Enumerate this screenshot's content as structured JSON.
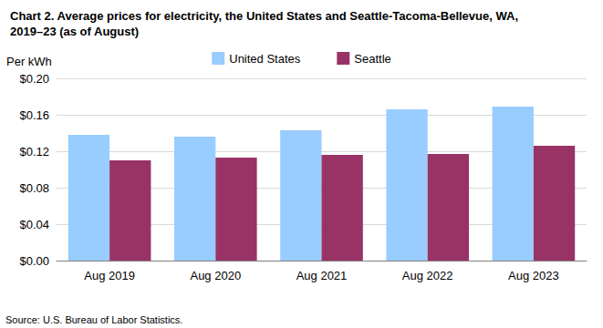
{
  "chart_data": {
    "type": "bar",
    "title": "Chart 2. Average prices for electricity, the United States and Seattle-Tacoma-Bellevue, WA, 2019–23 (as of August)",
    "y_label": "Per kWh",
    "source": "Source: U.S. Bureau of Labor Statistics.",
    "categories": [
      "Aug 2019",
      "Aug 2020",
      "Aug 2021",
      "Aug 2022",
      "Aug 2023"
    ],
    "series": [
      {
        "name": "United States",
        "color": "#99ccff",
        "values": [
          0.138,
          0.136,
          0.143,
          0.166,
          0.169
        ]
      },
      {
        "name": "Seattle",
        "color": "#993366",
        "values": [
          0.11,
          0.113,
          0.116,
          0.117,
          0.126
        ]
      }
    ],
    "ylim": [
      0,
      0.2
    ],
    "yticks": [
      {
        "value": 0,
        "label": "$0.00"
      },
      {
        "value": 0.04,
        "label": "$0.04"
      },
      {
        "value": 0.08,
        "label": "$0.08"
      },
      {
        "value": 0.12,
        "label": "$0.12"
      },
      {
        "value": 0.16,
        "label": "$0.16"
      },
      {
        "value": 0.2,
        "label": "$0.20"
      }
    ],
    "grid": true,
    "legend": "top"
  }
}
